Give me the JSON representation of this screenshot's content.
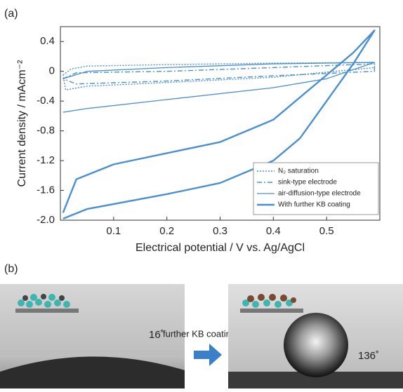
{
  "panel_a_label": "(a)",
  "chart_data": {
    "type": "line",
    "xlabel": "Electrical potential / V vs. Ag/AgCl",
    "ylabel": "Current density / mAcm⁻²",
    "xlim": [
      0,
      0.6
    ],
    "ylim": [
      -2.0,
      0.6
    ],
    "xticks": [
      0.1,
      0.2,
      0.3,
      0.4,
      0.5
    ],
    "yticks": [
      0.4,
      0,
      -0.4,
      -0.8,
      -1.2,
      -1.6,
      {
        "value": -2,
        "label": "-2.0"
      }
    ],
    "legend": "lower right",
    "series": [
      {
        "name": "N₂ saturation",
        "color": "#4a8fd0",
        "style": "dotted",
        "x": [
          0.005,
          0.02,
          0.05,
          0.2,
          0.4,
          0.59,
          0.59,
          0.4,
          0.2,
          0.05,
          0.01,
          0.005
        ],
        "values": [
          -0.05,
          0.03,
          0.07,
          0.09,
          0.11,
          0.12,
          0.05,
          -0.08,
          -0.15,
          -0.2,
          -0.25,
          -0.05
        ]
      },
      {
        "name": "sink-type electrode",
        "color": "#4a8fd0",
        "style": "dashdot",
        "x": [
          0.005,
          0.03,
          0.2,
          0.4,
          0.59,
          0.59,
          0.4,
          0.2,
          0.03,
          0.005
        ],
        "values": [
          -0.1,
          -0.02,
          0.0,
          0.05,
          0.1,
          0.0,
          -0.06,
          -0.13,
          -0.17,
          -0.1
        ]
      },
      {
        "name": "air-diffusion-type electrode",
        "color": "#4a8fd0",
        "style": "thin",
        "x": [
          0.005,
          0.05,
          0.2,
          0.4,
          0.5,
          0.59,
          0.4,
          0.2,
          0.05,
          0.005
        ],
        "values": [
          -0.55,
          -0.5,
          -0.38,
          -0.22,
          -0.1,
          0.12,
          0.1,
          0.05,
          0.0,
          -0.1
        ]
      },
      {
        "name": "With further KB coating",
        "color": "#4a8fd0",
        "style": "thick",
        "x": [
          0.005,
          0.05,
          0.2,
          0.3,
          0.4,
          0.45,
          0.5,
          0.55,
          0.59,
          0.55,
          0.5,
          0.45,
          0.4,
          0.3,
          0.2,
          0.1,
          0.03,
          0.005
        ],
        "values": [
          -1.98,
          -1.85,
          -1.65,
          -1.5,
          -1.2,
          -0.9,
          -0.4,
          0.1,
          0.55,
          0.25,
          -0.05,
          -0.35,
          -0.65,
          -0.95,
          -1.1,
          -1.25,
          -1.45,
          -1.9
        ]
      }
    ]
  },
  "panel_b": {
    "label": "(b)",
    "arrow_text": "further KB coating",
    "left_angle": "16˚",
    "right_angle": "136˚"
  }
}
